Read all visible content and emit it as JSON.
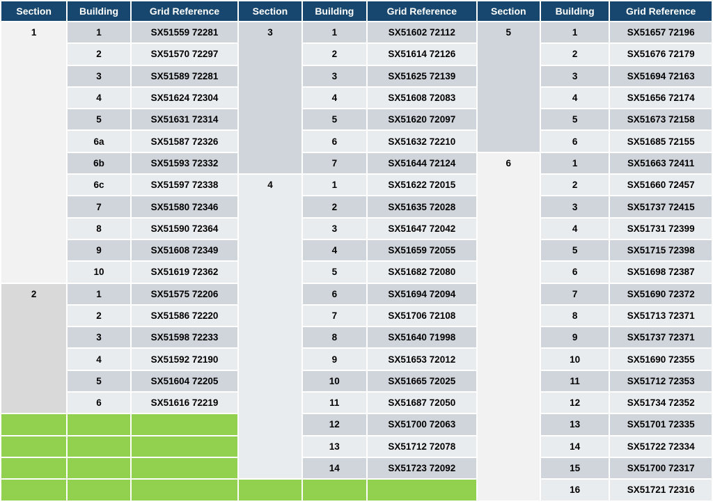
{
  "headers": [
    "Section",
    "Building",
    "Grid Reference",
    "Section",
    "Building",
    "Grid Reference",
    "Section",
    "Building",
    "Grid Reference"
  ],
  "groups": [
    {
      "sections": [
        {
          "label": "1",
          "span": 12,
          "shade": "sec-light"
        },
        {
          "label": "2",
          "span": 6,
          "shade": "sec-grey"
        }
      ],
      "rows": [
        {
          "building": "1",
          "grid": "SX51559 72281"
        },
        {
          "building": "2",
          "grid": "SX51570 72297"
        },
        {
          "building": "3",
          "grid": "SX51589 72281"
        },
        {
          "building": "4",
          "grid": "SX51624 72304"
        },
        {
          "building": "5",
          "grid": "SX51631 72314"
        },
        {
          "building": "6a",
          "grid": "SX51587 72326"
        },
        {
          "building": "6b",
          "grid": "SX51593 72332"
        },
        {
          "building": "6c",
          "grid": "SX51597 72338"
        },
        {
          "building": "7",
          "grid": "SX51580 72346"
        },
        {
          "building": "8",
          "grid": "SX51590 72364"
        },
        {
          "building": "9",
          "grid": "SX51608 72349"
        },
        {
          "building": "10",
          "grid": "SX51619 72362"
        },
        {
          "building": "1",
          "grid": "SX51575 72206"
        },
        {
          "building": "2",
          "grid": "SX51586 72220"
        },
        {
          "building": "3",
          "grid": "SX51598 72233"
        },
        {
          "building": "4",
          "grid": "SX51592 72190"
        },
        {
          "building": "5",
          "grid": "SX51604 72205"
        },
        {
          "building": "6",
          "grid": "SX51616 72219"
        }
      ],
      "green_rows": 4
    },
    {
      "sections": [
        {
          "label": "3",
          "span": 7,
          "shade": "sec-slate"
        },
        {
          "label": "4",
          "span": 14,
          "shade": "sec-pale"
        }
      ],
      "rows": [
        {
          "building": "1",
          "grid": "SX51602 72112"
        },
        {
          "building": "2",
          "grid": "SX51614 72126"
        },
        {
          "building": "3",
          "grid": "SX51625 72139"
        },
        {
          "building": "4",
          "grid": "SX51608 72083"
        },
        {
          "building": "5",
          "grid": "SX51620 72097"
        },
        {
          "building": "6",
          "grid": "SX51632 72210"
        },
        {
          "building": "7",
          "grid": "SX51644 72124"
        },
        {
          "building": "1",
          "grid": "SX51622 72015"
        },
        {
          "building": "2",
          "grid": "SX51635 72028"
        },
        {
          "building": "3",
          "grid": "SX51647 72042"
        },
        {
          "building": "4",
          "grid": "SX51659 72055"
        },
        {
          "building": "5",
          "grid": "SX51682 72080"
        },
        {
          "building": "6",
          "grid": "SX51694 72094"
        },
        {
          "building": "7",
          "grid": "SX51706 72108"
        },
        {
          "building": "8",
          "grid": "SX51640 71998"
        },
        {
          "building": "9",
          "grid": "SX51653 72012"
        },
        {
          "building": "10",
          "grid": "SX51665 72025"
        },
        {
          "building": "11",
          "grid": "SX51687 72050"
        },
        {
          "building": "12",
          "grid": "SX51700 72063"
        },
        {
          "building": "13",
          "grid": "SX51712 72078"
        },
        {
          "building": "14",
          "grid": "SX51723 72092"
        }
      ],
      "green_rows": 1
    },
    {
      "sections": [
        {
          "label": "5",
          "span": 6,
          "shade": "sec-slate"
        },
        {
          "label": "6",
          "span": 16,
          "shade": "sec-light"
        }
      ],
      "rows": [
        {
          "building": "1",
          "grid": "SX51657 72196"
        },
        {
          "building": "2",
          "grid": "SX51676 72179"
        },
        {
          "building": "3",
          "grid": "SX51694 72163"
        },
        {
          "building": "4",
          "grid": "SX51656 72174"
        },
        {
          "building": "5",
          "grid": "SX51673 72158"
        },
        {
          "building": "6",
          "grid": "SX51685 72155"
        },
        {
          "building": "1",
          "grid": "SX51663 72411"
        },
        {
          "building": "2",
          "grid": "SX51660 72457"
        },
        {
          "building": "3",
          "grid": "SX51737 72415"
        },
        {
          "building": "4",
          "grid": "SX51731 72399"
        },
        {
          "building": "5",
          "grid": "SX51715 72398"
        },
        {
          "building": "6",
          "grid": "SX51698 72387"
        },
        {
          "building": "7",
          "grid": "SX51690 72372"
        },
        {
          "building": "8",
          "grid": "SX51713 72371"
        },
        {
          "building": "9",
          "grid": "SX51737 72371"
        },
        {
          "building": "10",
          "grid": "SX51690 72355"
        },
        {
          "building": "11",
          "grid": "SX51712 72353"
        },
        {
          "building": "12",
          "grid": "SX51734 72352"
        },
        {
          "building": "13",
          "grid": "SX51701 72335"
        },
        {
          "building": "14",
          "grid": "SX51722 72334"
        },
        {
          "building": "15",
          "grid": "SX51700 72317"
        },
        {
          "building": "16",
          "grid": "SX51721 72316"
        }
      ],
      "green_rows": 0
    }
  ]
}
